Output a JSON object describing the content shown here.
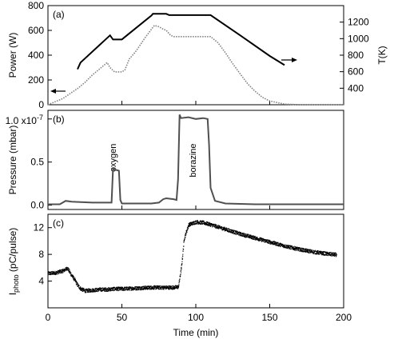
{
  "chart_data": [
    {
      "type": "line",
      "panel_label": "(a)",
      "ylabel": "Power (W)",
      "y2label": "T(K)",
      "xlim": [
        0,
        200
      ],
      "ylim": [
        0,
        800
      ],
      "y2lim": [
        200,
        1400
      ],
      "yticks": [
        0,
        200,
        400,
        600,
        800
      ],
      "y2ticks": [
        400,
        600,
        800,
        1000,
        1200
      ],
      "colors": {
        "power": "#808080",
        "temperature": "#000000"
      },
      "arrows": {
        "power": "left",
        "temperature": "right"
      },
      "series": [
        {
          "axis": "left",
          "style": "dotted",
          "x": [
            0,
            10,
            20,
            25,
            30,
            35,
            40,
            42,
            45,
            50,
            52,
            55,
            58,
            60,
            65,
            70,
            72,
            75,
            78,
            80,
            83,
            85,
            90,
            95,
            100,
            105,
            108,
            110,
            115,
            120,
            125,
            130,
            135,
            140,
            145,
            150,
            160,
            170,
            180,
            190,
            200
          ],
          "y": [
            0,
            50,
            130,
            180,
            240,
            290,
            340,
            300,
            265,
            265,
            280,
            370,
            410,
            440,
            530,
            610,
            640,
            630,
            610,
            600,
            560,
            550,
            550,
            550,
            550,
            550,
            550,
            550,
            500,
            420,
            330,
            250,
            170,
            110,
            60,
            30,
            5,
            0,
            0,
            0,
            0
          ]
        },
        {
          "axis": "right",
          "style": "solid",
          "x": [
            20,
            22,
            42,
            44,
            50,
            52,
            70,
            71,
            80,
            82,
            95,
            108,
            110,
            130,
            150,
            160
          ],
          "y": [
            630,
            710,
            1040,
            990,
            990,
            1020,
            1280,
            1300,
            1300,
            1285,
            1285,
            1285,
            1285,
            1040,
            790,
            680
          ]
        }
      ]
    },
    {
      "type": "line",
      "panel_label": "(b)",
      "ylabel": "Pressure (mbar)",
      "xlim": [
        0,
        200
      ],
      "ylim": [
        -0.05,
        1.1
      ],
      "yticks": [
        0.0,
        0.5
      ],
      "ytick_labels": [
        "0.0",
        "0.5"
      ],
      "top_tick_label": "1.0 x10",
      "top_tick_exponent": "-7",
      "top_tick_value": 1.0,
      "color": "#505050",
      "annotations": [
        {
          "text": "oxygen",
          "x": 46,
          "y": 0.55
        },
        {
          "text": "borazine",
          "x": 100,
          "y": 0.52
        }
      ],
      "series": [
        {
          "x": [
            0,
            8,
            12,
            16,
            30,
            40,
            43,
            44,
            46,
            48,
            49,
            50,
            52,
            60,
            70,
            75,
            78,
            80,
            85,
            87,
            88,
            89,
            90,
            95,
            100,
            105,
            108,
            109,
            110,
            113,
            120,
            140,
            160,
            180,
            200
          ],
          "y": [
            0.01,
            0.01,
            0.05,
            0.04,
            0.03,
            0.03,
            0.03,
            0.42,
            0.41,
            0.4,
            0.06,
            0.02,
            0.02,
            0.02,
            0.02,
            0.03,
            0.07,
            0.08,
            0.07,
            0.06,
            0.3,
            1.05,
            1.01,
            1.02,
            1.0,
            1.01,
            1.0,
            0.7,
            0.2,
            0.05,
            0.02,
            0.01,
            0.01,
            0.01,
            0.01
          ]
        }
      ]
    },
    {
      "type": "scatter",
      "panel_label": "(c)",
      "ylabel": "I",
      "ylabel_subscript": "photo",
      "ylabel_unit": " (pC/pulse)",
      "xlabel": "Time (min)",
      "xlim": [
        0,
        200
      ],
      "ylim": [
        0,
        14
      ],
      "xticks": [
        0,
        50,
        100,
        150,
        200
      ],
      "yticks": [
        4,
        8,
        12
      ],
      "color": "#000000",
      "series": [
        {
          "x": [
            0,
            5,
            10,
            13,
            15,
            18,
            20,
            22,
            25,
            30,
            35,
            40,
            45,
            50,
            60,
            70,
            80,
            85,
            88,
            90,
            92,
            95,
            100,
            105,
            110,
            120,
            130,
            140,
            150,
            160,
            170,
            180,
            190,
            195
          ],
          "y": [
            5.2,
            5.3,
            5.6,
            6.0,
            5.2,
            4.2,
            3.4,
            2.9,
            2.6,
            2.7,
            2.8,
            2.8,
            2.9,
            2.9,
            3.0,
            3.1,
            3.1,
            3.1,
            3.2,
            6.0,
            10.5,
            12.5,
            12.9,
            12.8,
            12.5,
            11.8,
            11.1,
            10.5,
            9.9,
            9.3,
            8.8,
            8.4,
            8.1,
            8.0
          ]
        }
      ]
    }
  ]
}
